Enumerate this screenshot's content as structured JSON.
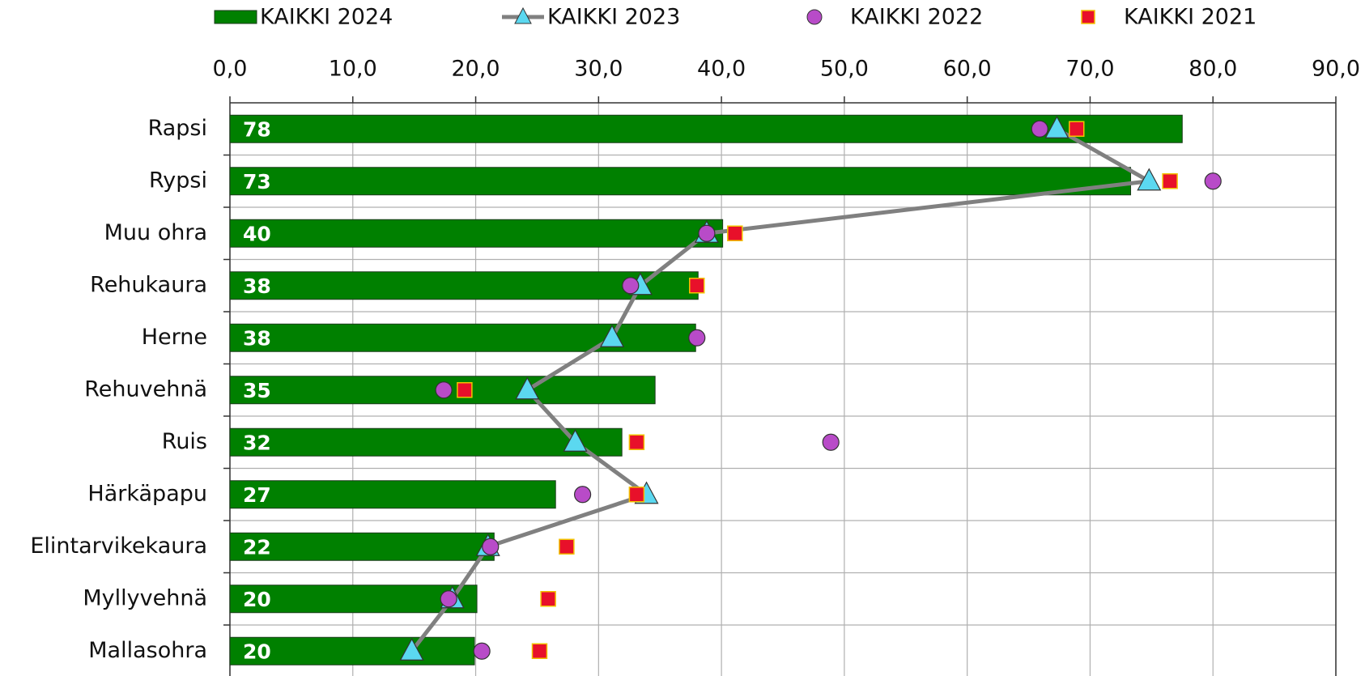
{
  "chart_data": {
    "type": "bar",
    "orientation": "horizontal",
    "categories": [
      "Rapsi",
      "Rypsi",
      "Muu ohra",
      "Rehukaura",
      "Herne",
      "Rehuvehnä",
      "Ruis",
      "Härkäpapu",
      "Elintarvikekaura",
      "Myllyvehnä",
      "Mallasohra"
    ],
    "series": [
      {
        "name": "KAIKKI 2024",
        "type": "bar",
        "color": "#008000",
        "values": [
          77.5,
          73.3,
          40.1,
          38.1,
          37.9,
          34.6,
          31.9,
          26.5,
          21.5,
          20.1,
          19.9
        ],
        "value_labels": [
          "78",
          "73",
          "40",
          "38",
          "38",
          "35",
          "32",
          "27",
          "22",
          "20",
          "20"
        ]
      },
      {
        "name": "KAIKKI 2023",
        "type": "line",
        "marker": "triangle",
        "color": "#5bd8f0",
        "line_color": "#808080",
        "values": [
          67.3,
          74.8,
          38.8,
          33.4,
          31.1,
          24.2,
          28.1,
          33.9,
          21.0,
          18.1,
          14.8
        ]
      },
      {
        "name": "KAIKKI 2022",
        "type": "scatter",
        "marker": "circle",
        "color": "#b84bc8",
        "values": [
          65.9,
          80.0,
          38.8,
          32.6,
          38.0,
          17.4,
          48.9,
          28.7,
          21.2,
          17.8,
          20.5
        ]
      },
      {
        "name": "KAIKKI 2021",
        "type": "scatter",
        "marker": "square",
        "color": "#e8102a",
        "values": [
          68.9,
          76.5,
          41.1,
          38.0,
          null,
          19.1,
          33.1,
          33.1,
          27.4,
          25.9,
          25.2
        ]
      }
    ],
    "xlim": [
      0,
      90
    ],
    "xticks": [
      {
        "value": 0,
        "label": "0,0"
      },
      {
        "value": 10,
        "label": "10,0"
      },
      {
        "value": 20,
        "label": "20,0"
      },
      {
        "value": 30,
        "label": "30,0"
      },
      {
        "value": 40,
        "label": "40,0"
      },
      {
        "value": 50,
        "label": "50,0"
      },
      {
        "value": 60,
        "label": "60,0"
      },
      {
        "value": 70,
        "label": "70,0"
      },
      {
        "value": 80,
        "label": "80,0"
      },
      {
        "value": 90,
        "label": "90,0"
      }
    ],
    "grid": true,
    "legend": "top"
  }
}
